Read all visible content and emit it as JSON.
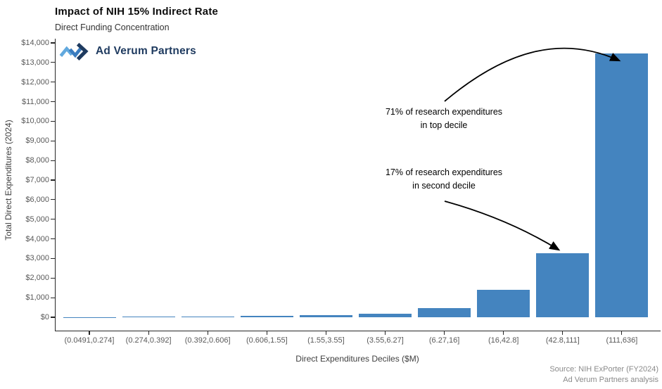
{
  "chart_data": {
    "type": "bar",
    "title": "Impact of NIH 15% Indirect Rate",
    "subtitle": "Direct Funding Concentration",
    "xlabel": "Direct Expenditures Deciles ($M)",
    "ylabel": "Total Direct Expenditures (2024)",
    "categories": [
      "(0.0491,0.274]",
      "(0.274,0.392]",
      "(0.392,0.606]",
      "(0.606,1.55]",
      "(1.55,3.55]",
      "(3.55,6.27]",
      "(6.27,16]",
      "(16,42.8]",
      "(42.8,111]",
      "(111,636]"
    ],
    "values": [
      10,
      25,
      45,
      65,
      105,
      175,
      450,
      1400,
      3250,
      13450
    ],
    "ylim": [
      0,
      14000
    ],
    "ytick_interval": 1000,
    "ytick_labels": [
      "$0",
      "$1,000",
      "$2,000",
      "$3,000",
      "$4,000",
      "$5,000",
      "$6,000",
      "$7,000",
      "$8,000",
      "$9,000",
      "$10,000",
      "$11,000",
      "$12,000",
      "$13,000",
      "$14,000"
    ],
    "grid": false,
    "legend": false,
    "bar_color": "#4484bf",
    "annotations": [
      {
        "id": "top-decile",
        "lines": [
          "71% of research expenditures",
          "in top decile"
        ]
      },
      {
        "id": "second-decile",
        "lines": [
          "17% of research expenditures",
          "in second decile"
        ]
      }
    ]
  },
  "logo": {
    "text": "Ad Verum Partners"
  },
  "footer": {
    "source_line1": "Source: NIH ExPorter (FY2024)",
    "source_line2": "Ad Verum Partners analysis"
  },
  "colors": {
    "bar": "#4484bf",
    "axis": "#262626",
    "tick_label": "#595959",
    "logo_navy": "#1e3a5f",
    "logo_mid_blue": "#3a7cbf",
    "logo_light_blue": "#62a9de",
    "source_text": "#8a8a8a",
    "annotation_text": "#000000"
  }
}
